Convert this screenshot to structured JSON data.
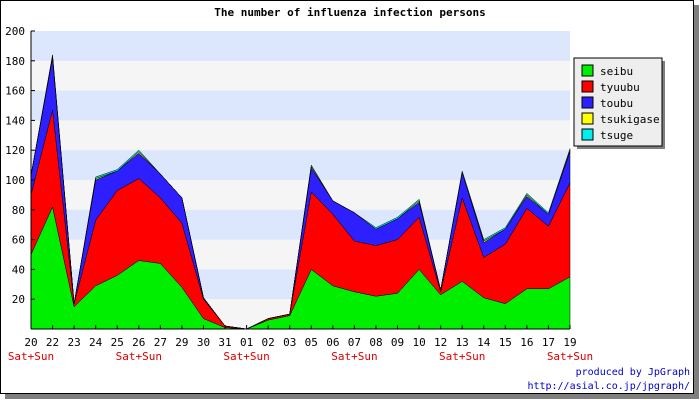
{
  "chart_data": {
    "type": "area",
    "stacked": true,
    "title": "The number of influenza infection persons",
    "xlabel": "",
    "ylabel": "",
    "ylim": [
      0,
      200
    ],
    "yticks": [
      20,
      40,
      60,
      80,
      100,
      120,
      140,
      160,
      180,
      200
    ],
    "categories": [
      "20",
      "22",
      "23",
      "24",
      "25",
      "26",
      "27",
      "29",
      "30",
      "31",
      "01",
      "02",
      "03",
      "05",
      "06",
      "07",
      "08",
      "09",
      "10",
      "12",
      "13",
      "14",
      "15",
      "16",
      "17",
      "19"
    ],
    "weekend_indices": [
      0,
      5,
      10,
      15,
      20,
      25
    ],
    "weekend_label": "Sat+Sun",
    "grid": true,
    "legend_position": "right",
    "series": [
      {
        "name": "seibu",
        "color": "#00ee00",
        "values": [
          50,
          82,
          15,
          29,
          36,
          46,
          44,
          28,
          7,
          1,
          0,
          6,
          9,
          40,
          29,
          25,
          22,
          24,
          40,
          23,
          32,
          21,
          17,
          27,
          27,
          35
        ]
      },
      {
        "name": "tyuubu",
        "color": "#ff0000",
        "values": [
          40,
          65,
          2,
          44,
          57,
          55,
          44,
          43,
          13,
          1,
          0,
          1,
          1,
          52,
          48,
          34,
          34,
          36,
          35,
          2,
          56,
          27,
          40,
          54,
          42,
          63
        ]
      },
      {
        "name": "toubu",
        "color": "#2e1fff",
        "values": [
          13,
          35,
          0,
          27,
          13,
          17,
          16,
          17,
          1,
          0,
          0,
          0,
          0,
          16,
          9,
          19,
          11,
          14,
          10,
          1,
          17,
          10,
          10,
          8,
          8,
          21
        ]
      },
      {
        "name": "tsukigase",
        "color": "#ffff00",
        "values": [
          0,
          1,
          0,
          1,
          0,
          1,
          0,
          0,
          0,
          0,
          0,
          0,
          0,
          1,
          0,
          0,
          0,
          0,
          1,
          0,
          0,
          1,
          0,
          1,
          0,
          1
        ]
      },
      {
        "name": "tsuge",
        "color": "#00eeee",
        "values": [
          0,
          1,
          0,
          1,
          1,
          1,
          0,
          0,
          0,
          0,
          0,
          0,
          0,
          1,
          0,
          0,
          1,
          1,
          1,
          0,
          1,
          1,
          1,
          1,
          1,
          1
        ]
      }
    ]
  },
  "credit": {
    "line1": "produced by JpGraph",
    "line2": "http://asial.co.jp/jpgraph/"
  }
}
